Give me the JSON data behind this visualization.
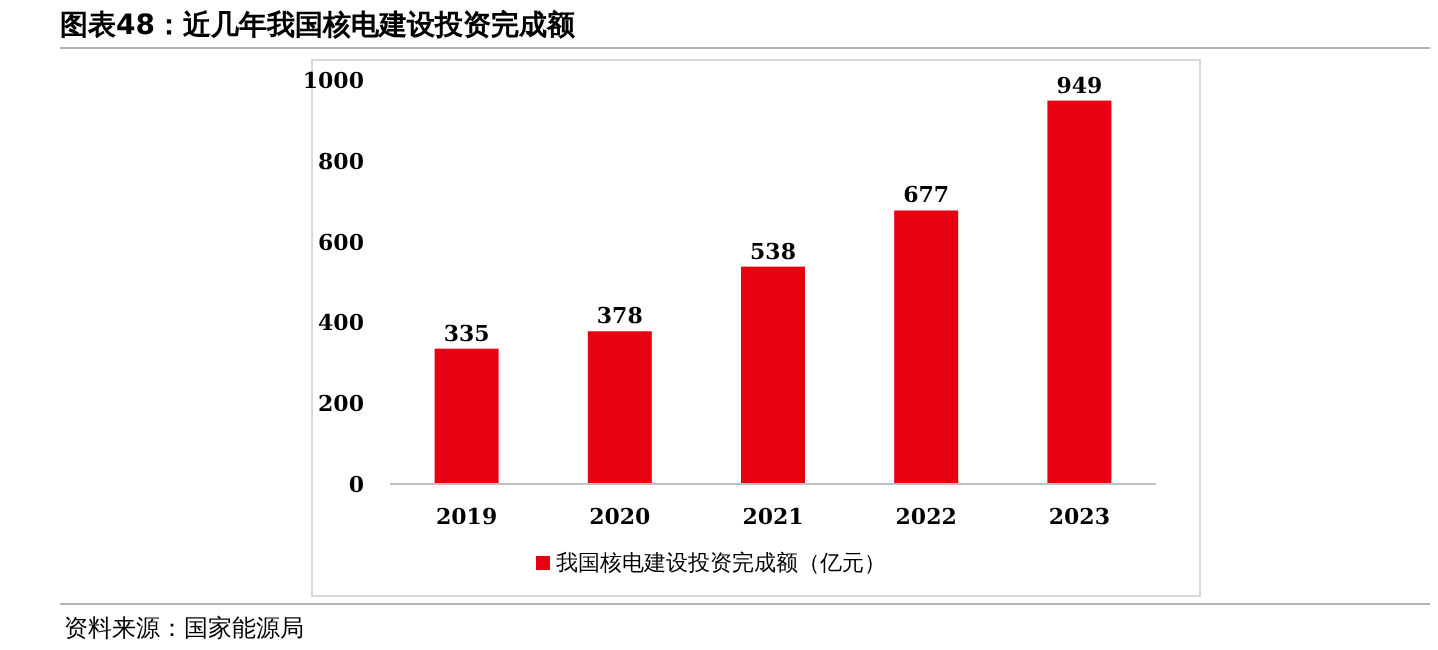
{
  "chart_data": {
    "type": "bar",
    "title": "图表48：近几年我国核电建设投资完成额",
    "categories": [
      "2019",
      "2020",
      "2021",
      "2022",
      "2023"
    ],
    "series": [
      {
        "name": "我国核电建设投资完成额（亿元）",
        "color": "#e60012",
        "values": [
          335,
          378,
          538,
          677,
          949
        ]
      }
    ],
    "ylim": [
      0,
      1000
    ],
    "yticks": [
      0,
      200,
      400,
      600,
      800,
      1000
    ],
    "data_labels": true,
    "legend": "bottom",
    "grid": false,
    "annotations": [
      "资料来源：国家能源局"
    ]
  }
}
